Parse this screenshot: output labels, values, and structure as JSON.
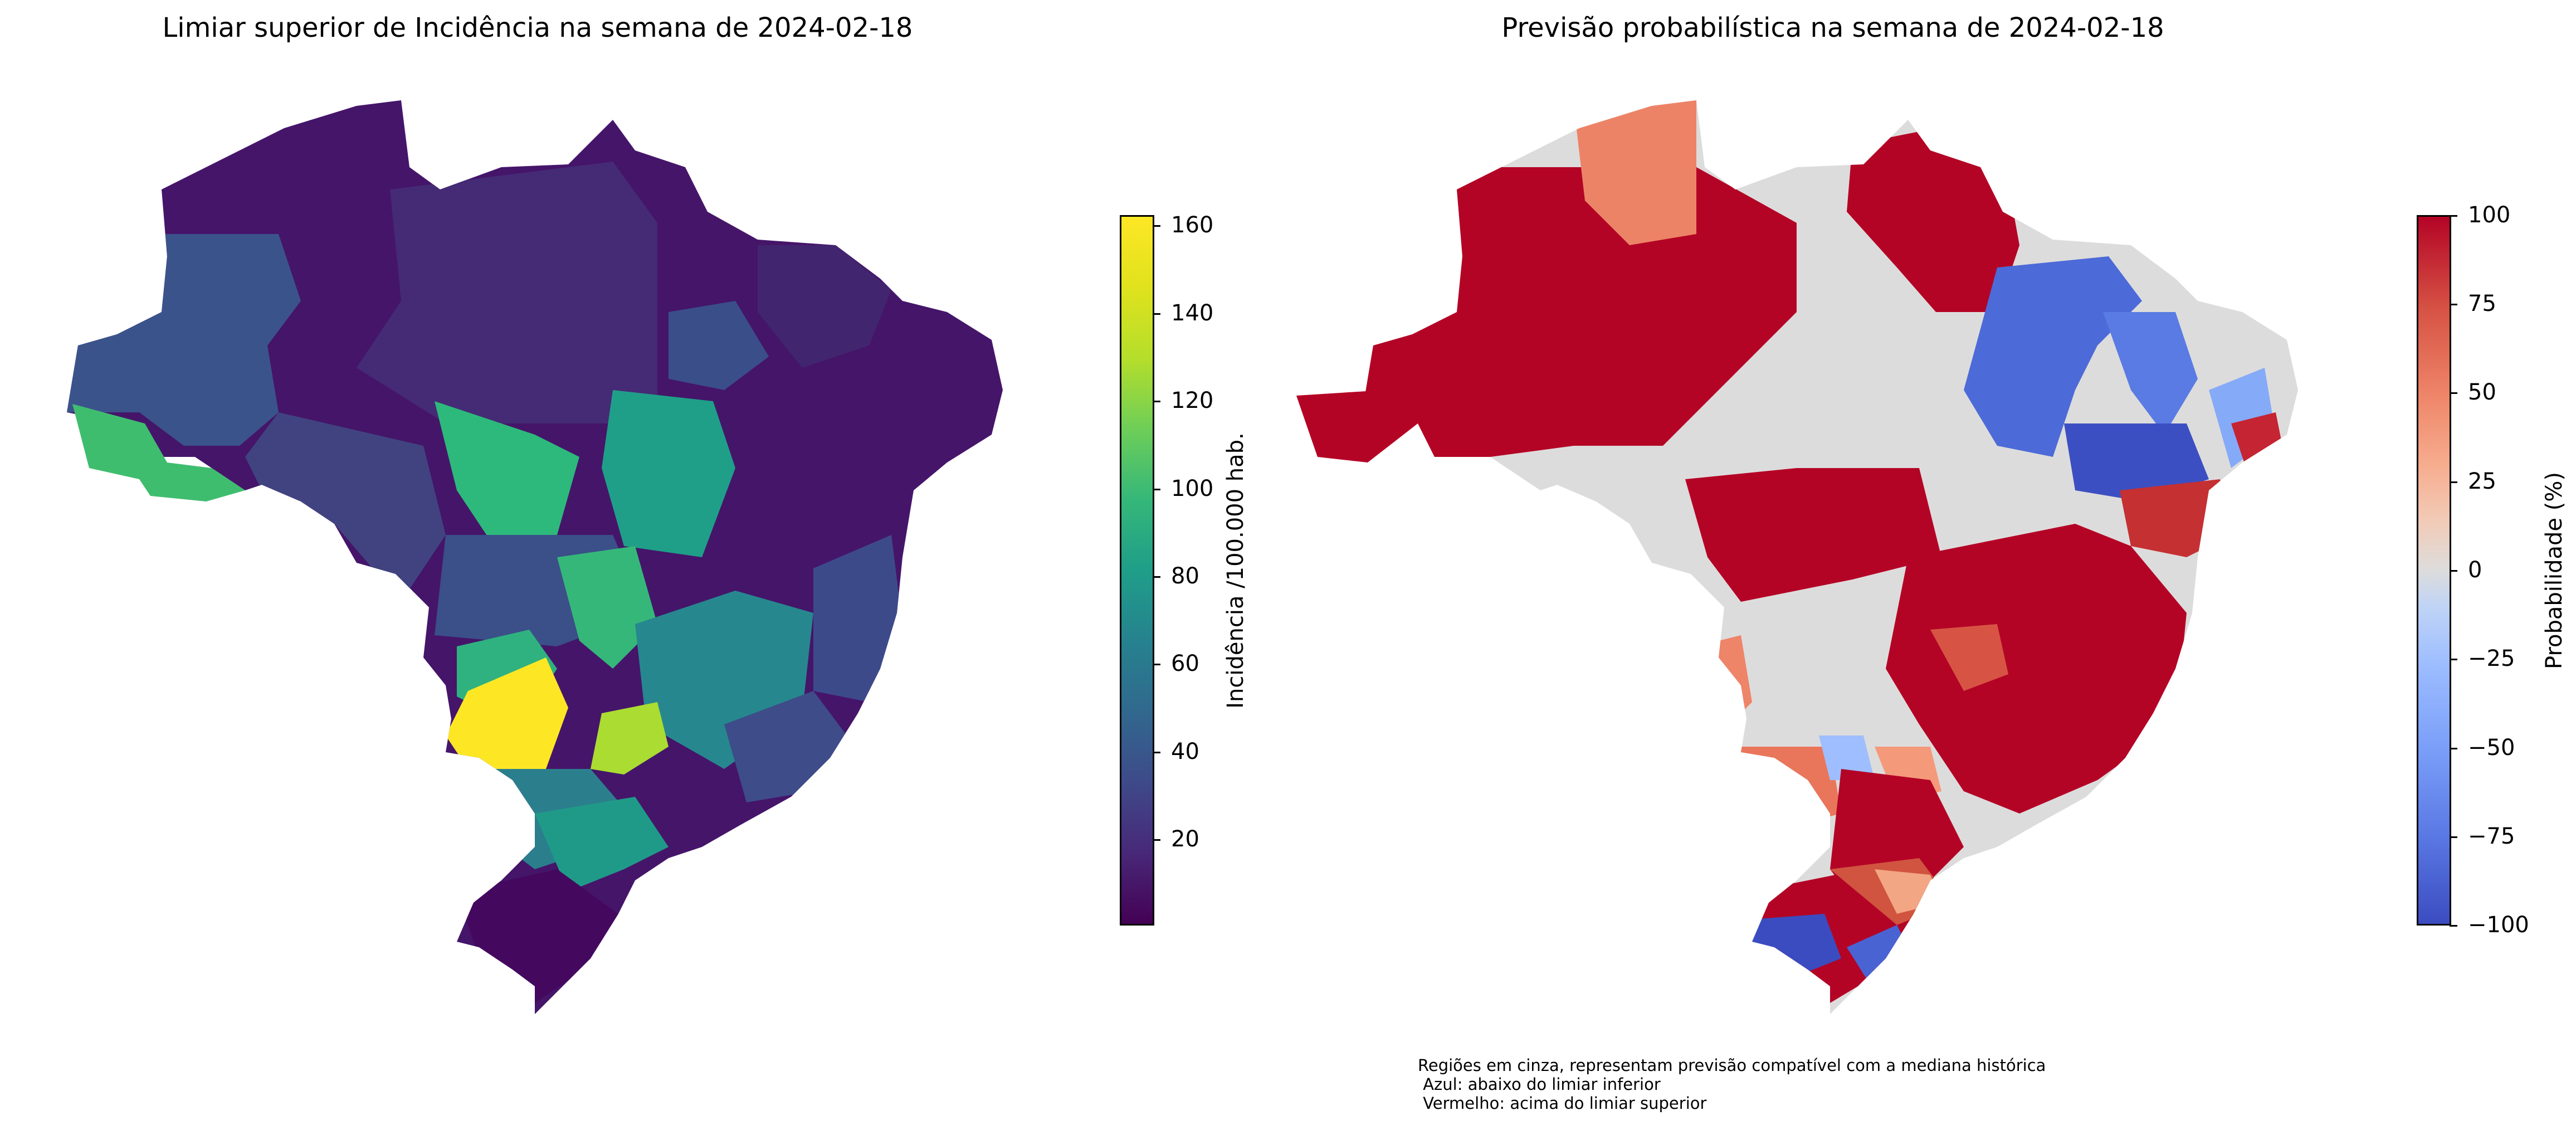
{
  "left_panel": {
    "title": "Limiar superior de Incidência na semana de 2024-02-18",
    "colorbar": {
      "label": "Incidência /100.000 hab.",
      "colormap": "viridis",
      "range": [
        0,
        162
      ],
      "ticks": [
        "20",
        "40",
        "60",
        "80",
        "100",
        "120",
        "140",
        "160"
      ]
    }
  },
  "right_panel": {
    "title": "Previsão probabilística na semana de 2024-02-18",
    "colorbar": {
      "label": "Probabilidade (%)",
      "colormap": "coolwarm",
      "range": [
        -100,
        100
      ],
      "ticks": [
        "100",
        "75",
        "50",
        "25",
        "0",
        "−25",
        "−50",
        "−75",
        "−100"
      ]
    },
    "footnote": "Regiões em cinza, representam previsão compatível com a mediana histórica\n Azul: abaixo do limiar inferior\n Vermelho: acima do limiar superior"
  },
  "colors": {
    "viridis_low": "#440154",
    "viridis_high": "#fde725",
    "coolwarm_low": "#3b4cc0",
    "coolwarm_mid": "#dddcdc",
    "coolwarm_high": "#b40426"
  }
}
